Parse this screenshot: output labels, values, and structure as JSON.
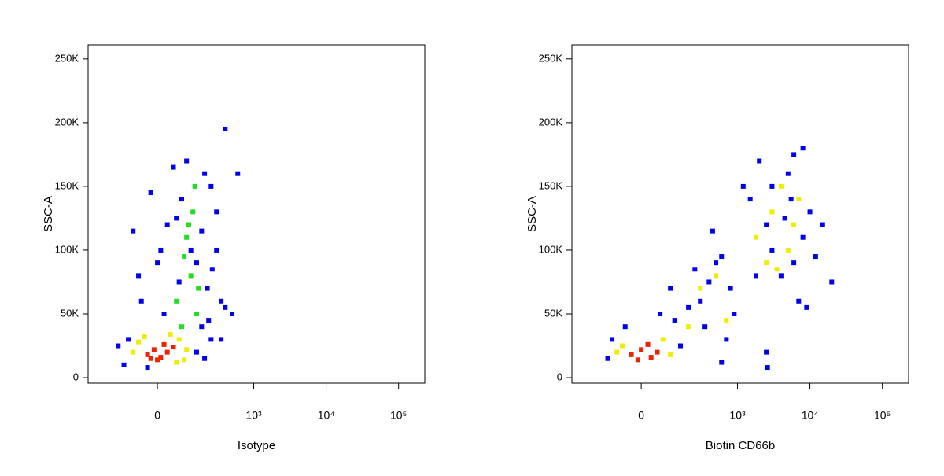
{
  "chart_data": [
    {
      "type": "scatter",
      "xlabel": "Isotype",
      "ylabel": "SSC-A",
      "xscale": "logicle",
      "xlim": [
        -420,
        230000
      ],
      "ylim": [
        -4300,
        261000
      ],
      "xticks": [
        0,
        {
          "value": 1000,
          "label": "10³"
        },
        {
          "value": 10000,
          "label": "10⁴"
        },
        {
          "value": 100000,
          "label": "10⁵"
        }
      ],
      "yticks": [
        {
          "value": 0,
          "label": "0"
        },
        {
          "value": 50000,
          "label": "50K"
        },
        {
          "value": 100000,
          "label": "100K"
        },
        {
          "value": 150000,
          "label": "150K"
        },
        {
          "value": 200000,
          "label": "200K"
        },
        {
          "value": 250000,
          "label": "250K"
        }
      ],
      "series": [
        {
          "color": "#0000ee",
          "x": [
            -100,
            -150,
            150,
            200,
            -50,
            0,
            30,
            50,
            100,
            200,
            250,
            300,
            350,
            500,
            400,
            600,
            -80,
            -20,
            20,
            180,
            250,
            120,
            80,
            220,
            300,
            150,
            -120,
            -30,
            400,
            70,
            180,
            260,
            -60,
            350,
            230,
            10,
            60
          ],
          "values": [
            30000,
            25000,
            20000,
            15000,
            60000,
            90000,
            120000,
            165000,
            170000,
            160000,
            150000,
            100000,
            60000,
            50000,
            195000,
            160000,
            115000,
            145000,
            50000,
            40000,
            30000,
            100000,
            140000,
            70000,
            130000,
            90000,
            10000,
            8000,
            55000,
            75000,
            115000,
            85000,
            80000,
            30000,
            45000,
            100000,
            125000
          ]
        },
        {
          "color": "#22dd22",
          "x": [
            60,
            120,
            100,
            140,
            90,
            160,
            130,
            80,
            150,
            110
          ],
          "values": [
            60000,
            80000,
            110000,
            150000,
            95000,
            70000,
            130000,
            40000,
            50000,
            120000
          ]
        },
        {
          "color": "#eeee00",
          "x": [
            -60,
            70,
            -80,
            90,
            40,
            -40,
            100,
            60
          ],
          "values": [
            28000,
            30000,
            20000,
            14000,
            34000,
            32000,
            22000,
            12000
          ]
        },
        {
          "color": "#ee2200",
          "x": [
            -30,
            -10,
            10,
            30,
            50,
            0,
            20,
            -20
          ],
          "values": [
            18000,
            22000,
            16000,
            20000,
            24000,
            14000,
            26000,
            15000
          ]
        }
      ]
    },
    {
      "type": "scatter",
      "xlabel": "Biotin CD66b",
      "ylabel": "SSC-A",
      "xscale": "logicle",
      "xlim": [
        -420,
        230000
      ],
      "ylim": [
        -4300,
        261000
      ],
      "xticks": [
        0,
        {
          "value": 1000,
          "label": "10³"
        },
        {
          "value": 10000,
          "label": "10⁴"
        },
        {
          "value": 100000,
          "label": "10⁵"
        }
      ],
      "yticks": [
        {
          "value": 0,
          "label": "0"
        },
        {
          "value": 50000,
          "label": "50K"
        },
        {
          "value": 100000,
          "label": "100K"
        },
        {
          "value": 150000,
          "label": "150K"
        },
        {
          "value": 200000,
          "label": "200K"
        },
        {
          "value": 250000,
          "label": "250K"
        }
      ],
      "series": [
        {
          "color": "#0000ee",
          "x": [
            -120,
            -100,
            150,
            200,
            300,
            400,
            500,
            600,
            800,
            250,
            120,
            350,
            700,
            900,
            100,
            60,
            450,
            -50,
            1500,
            2000,
            2500,
            3000,
            4000,
            5000,
            6000,
            8000,
            10000,
            12000,
            15000,
            20000,
            7000,
            9000,
            3000,
            4500,
            6000,
            1800,
            2500,
            2600,
            600,
            8000,
            1200,
            5500
          ],
          "values": [
            15000,
            30000,
            25000,
            55000,
            60000,
            75000,
            90000,
            95000,
            70000,
            85000,
            45000,
            40000,
            30000,
            50000,
            70000,
            50000,
            115000,
            40000,
            140000,
            170000,
            120000,
            100000,
            80000,
            160000,
            175000,
            110000,
            130000,
            95000,
            120000,
            75000,
            60000,
            55000,
            150000,
            125000,
            90000,
            80000,
            20000,
            8000,
            12000,
            180000,
            150000,
            140000
          ]
        },
        {
          "color": "#eeee00",
          "x": [
            -60,
            70,
            100,
            -80,
            1800,
            3000,
            5000,
            4000,
            6000,
            2500,
            7000,
            3500,
            300,
            500,
            700,
            200
          ],
          "values": [
            25000,
            30000,
            18000,
            20000,
            110000,
            130000,
            100000,
            150000,
            120000,
            90000,
            140000,
            85000,
            70000,
            80000,
            45000,
            40000
          ]
        },
        {
          "color": "#ee2200",
          "x": [
            -30,
            0,
            30,
            50,
            -10,
            20
          ],
          "values": [
            18000,
            22000,
            16000,
            20000,
            14000,
            26000
          ]
        }
      ]
    }
  ]
}
